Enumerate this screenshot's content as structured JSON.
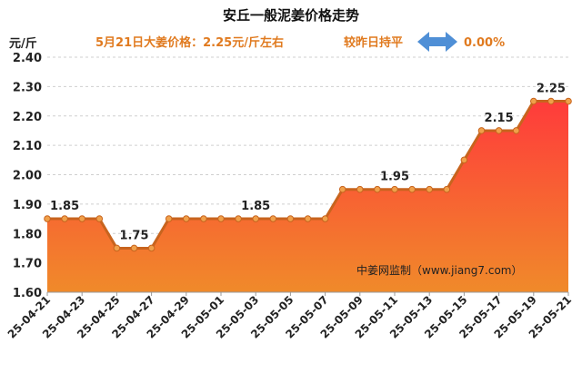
{
  "title": "安丘一般泥姜价格走势",
  "subtitle": {
    "price_text": "5月21日大姜价格：2.25元/斤左右",
    "compare_text": "较昨日持平",
    "change_text": "0.00%",
    "arrow_icon": "double-arrow-icon"
  },
  "unit_label": "元/斤",
  "watermark": "中姜网监制（www.jiang7.com）",
  "colors": {
    "accent": "#e07a1f",
    "line": "#c8641e",
    "point": "#f0a04a",
    "fill_top": "#ff3b3b",
    "fill_bottom": "#f08a2a",
    "arrow": "#4f8fd6"
  },
  "chart_data": {
    "type": "area",
    "title": "安丘一般泥姜价格走势",
    "ylabel": "元/斤",
    "ylim": [
      1.6,
      2.4
    ],
    "yticks": [
      "1.60",
      "1.70",
      "1.80",
      "1.90",
      "2.00",
      "2.10",
      "2.20",
      "2.30",
      "2.40"
    ],
    "grid": true,
    "x": [
      "25-04-21",
      "25-04-22",
      "25-04-23",
      "25-04-24",
      "25-04-25",
      "25-04-26",
      "25-04-27",
      "25-04-28",
      "25-04-29",
      "25-04-30",
      "25-05-01",
      "25-05-02",
      "25-05-03",
      "25-05-04",
      "25-05-05",
      "25-05-06",
      "25-05-07",
      "25-05-08",
      "25-05-09",
      "25-05-10",
      "25-05-11",
      "25-05-12",
      "25-05-13",
      "25-05-14",
      "25-05-15",
      "25-05-16",
      "25-05-17",
      "25-05-18",
      "25-05-19",
      "25-05-20",
      "25-05-21"
    ],
    "xtick_labels": [
      "25-04-21",
      "25-04-23",
      "25-04-25",
      "25-04-27",
      "25-04-29",
      "25-05-01",
      "25-05-03",
      "25-05-05",
      "25-05-07",
      "25-05-09",
      "25-05-11",
      "25-05-13",
      "25-05-15",
      "25-05-17",
      "25-05-19",
      "25-05-21"
    ],
    "values": [
      1.85,
      1.85,
      1.85,
      1.85,
      1.75,
      1.75,
      1.75,
      1.85,
      1.85,
      1.85,
      1.85,
      1.85,
      1.85,
      1.85,
      1.85,
      1.85,
      1.85,
      1.95,
      1.95,
      1.95,
      1.95,
      1.95,
      1.95,
      1.95,
      2.05,
      2.15,
      2.15,
      2.15,
      2.25,
      2.25,
      2.25
    ],
    "data_labels": [
      {
        "index": 1,
        "text": "1.85"
      },
      {
        "index": 5,
        "text": "1.75"
      },
      {
        "index": 12,
        "text": "1.85"
      },
      {
        "index": 20,
        "text": "1.95"
      },
      {
        "index": 26,
        "text": "2.15"
      },
      {
        "index": 29,
        "text": "2.25"
      }
    ]
  }
}
